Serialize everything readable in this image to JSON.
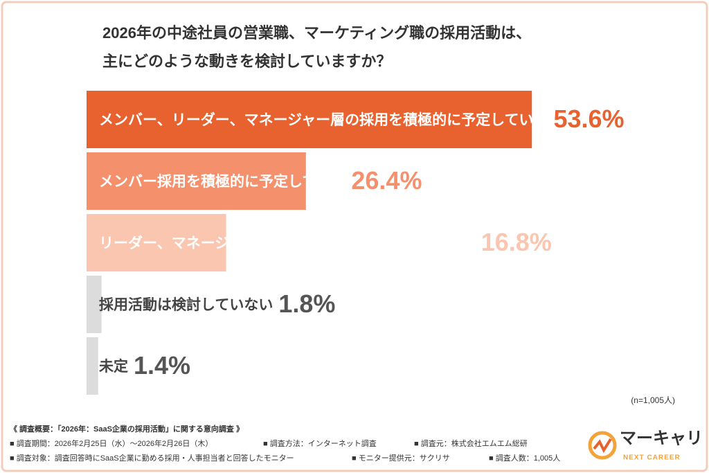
{
  "chart_data": {
    "type": "bar",
    "orientation": "horizontal",
    "title": [
      "2026年の中途社員の営業職、マーケティング職の採用活動は、",
      "主にどのような動きを検討していますか？"
    ],
    "categories": [
      "メンバー、リーダー、マネージャー層の採用を積極的に予定している",
      "メンバー採用を積極的に予定している",
      "リーダー、マネージャー層の採用を積極的に予定している",
      "採用活動は検討していない",
      "未定"
    ],
    "values": [
      53.6,
      26.4,
      16.8,
      1.8,
      1.4
    ],
    "value_labels": [
      "53.6%",
      "26.4%",
      "16.8%",
      "1.8%",
      "1.4%"
    ],
    "colors": [
      "#e8622f",
      "#f4906b",
      "#fbc6b0",
      "#dcdcdc",
      "#dcdcdc"
    ],
    "label_colors": [
      "#ffffff",
      "#ffffff",
      "#ffffff",
      "#444444",
      "#444444"
    ],
    "value_label_colors": [
      "#e8622f",
      "#f4906b",
      "#fbc6b0",
      "#555555",
      "#555555"
    ],
    "note": "(n=1,005人)"
  },
  "footer": {
    "heading": "《 調査概要：「2026年：SaaS企業の採用活動」に関する意向調査 》",
    "items": [
      [
        "■ 調査期間：2026年2月25日（水）～2026年2月26日（木）",
        "■ 調査方法：インターネット調査",
        "■ 調査元：株式会社エムエム総研"
      ],
      [
        "■ 調査対象：調査回答時にSaaS企業に勤める採用・人事担当者と回答したモニター",
        "■ モニター提供元：サクリサ",
        "■ 調査人数：1,005人"
      ]
    ]
  },
  "logo": {
    "name": "マーキャリ",
    "tagline": "NEXT CAREER"
  }
}
